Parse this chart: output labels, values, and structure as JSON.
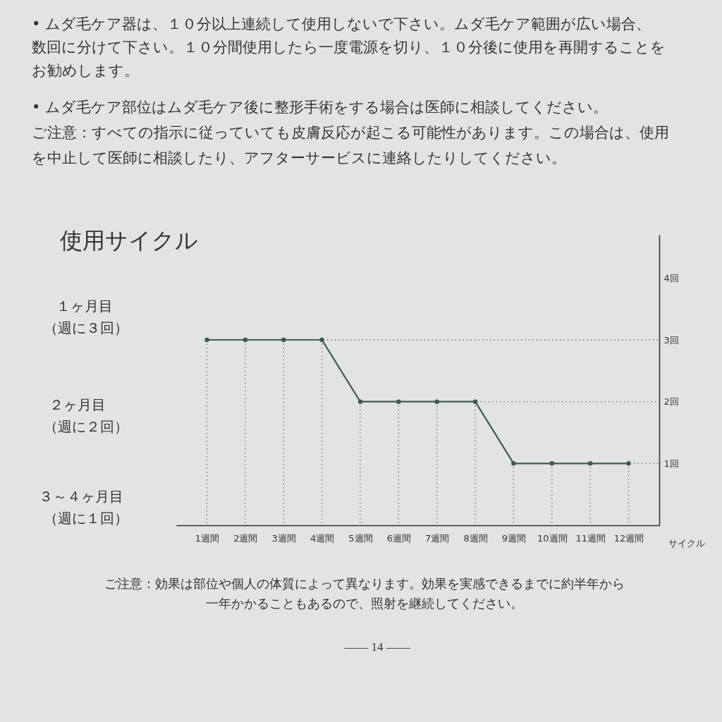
{
  "chart_data": {
    "type": "line",
    "title": "使用サイクル",
    "xlabel": "サイクル",
    "categories": [
      "1週間",
      "2週間",
      "3週間",
      "4週間",
      "5週間",
      "6週間",
      "7週間",
      "8週間",
      "9週間",
      "10週間",
      "11週間",
      "12週間"
    ],
    "series": [
      {
        "color": "#3e5b58",
        "values": [
          3,
          3,
          3,
          3,
          2,
          2,
          2,
          2,
          1,
          1,
          1,
          1
        ]
      }
    ],
    "ylim": [
      0,
      4.7
    ],
    "yticks": [
      {
        "value": 1,
        "label": "1回"
      },
      {
        "value": 2,
        "label": "2回"
      },
      {
        "value": 3,
        "label": "3回"
      },
      {
        "value": 4,
        "label": "4回"
      }
    ],
    "marker": "circle",
    "line_style": "solid",
    "ref_lines": [
      {
        "axis": "x",
        "value": "1週間",
        "color": "#6f6f6f",
        "line_style": "dotted"
      },
      {
        "axis": "x",
        "value": "2週間",
        "color": "#6f6f6f",
        "line_style": "dotted"
      },
      {
        "axis": "x",
        "value": "3週間",
        "color": "#6f6f6f",
        "line_style": "dotted"
      },
      {
        "axis": "x",
        "value": "4週間",
        "color": "#6f6f6f",
        "line_style": "dotted"
      },
      {
        "axis": "x",
        "value": "5週間",
        "color": "#6f6f6f",
        "line_style": "dotted"
      },
      {
        "axis": "x",
        "value": "6週間",
        "color": "#6f6f6f",
        "line_style": "dotted"
      },
      {
        "axis": "x",
        "value": "7週間",
        "color": "#6f6f6f",
        "line_style": "dotted"
      },
      {
        "axis": "x",
        "value": "8週間",
        "color": "#6f6f6f",
        "line_style": "dotted"
      },
      {
        "axis": "x",
        "value": "9週間",
        "color": "#6f6f6f",
        "line_style": "dotted"
      },
      {
        "axis": "x",
        "value": "10週間",
        "color": "#6f6f6f",
        "line_style": "dotted"
      },
      {
        "axis": "x",
        "value": "11週間",
        "color": "#6f6f6f",
        "line_style": "dotted"
      },
      {
        "axis": "x",
        "value": "12週間",
        "color": "#6f6f6f",
        "line_style": "dotted"
      },
      {
        "axis": "y",
        "value": 3,
        "color": "#6f6f6f",
        "line_style": "dotted"
      },
      {
        "axis": "y",
        "value": 2,
        "color": "#6f6f6f",
        "line_style": "dotted"
      },
      {
        "axis": "y",
        "value": 1,
        "color": "#6f6f6f",
        "line_style": "dotted"
      }
    ],
    "annotations": [
      "• ムダ毛ケア器は、１０分以上連続して使用しないで下さい。ムダ毛ケア範囲が広い場合、数回に分けて下さい。１０分間使用したら一度電源を切り、１０分後に使用を再開することをお勧めします。",
      "• ムダ毛ケア部位はムダ毛ケア後に整形手術をする場合は医師に相談してください。",
      "ご注意：すべての指示に従っていても皮膚反応が起こる可能性があります。この場合は、使用を中止して医師に相談したり、アフターサービスに連絡したりしてください。",
      "１ヶ月目",
      "（週に３回）",
      "２ヶ月目",
      "（週に２回）",
      "３～４ヶ月目",
      "（週に１回）",
      "ご注意：効果は部位や個人の体質によって異なります。効果を実感できるまでに約半年から一年かかることもあるので、照射を継続してください。",
      "—— 14 ——"
    ]
  }
}
